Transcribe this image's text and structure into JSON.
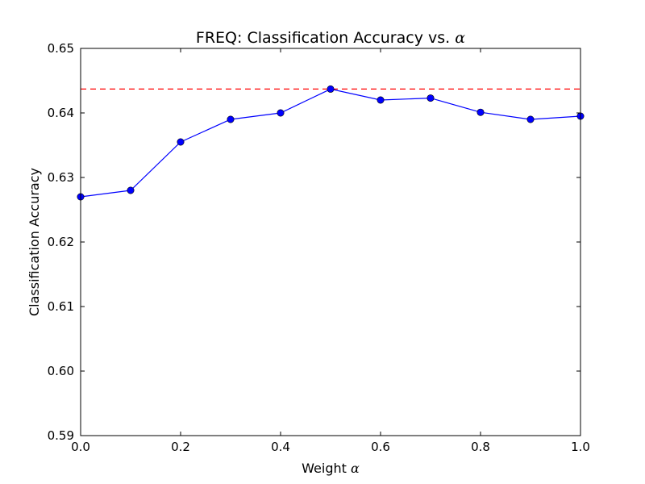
{
  "chart_data": {
    "type": "line",
    "title": "FREQ: Classification Accuracy vs.",
    "title_symbol": "α",
    "xlabel": "Weight",
    "xlabel_symbol": "α",
    "ylabel": "Classification Accuracy",
    "xlim": [
      0.0,
      1.0
    ],
    "ylim": [
      0.59,
      0.65
    ],
    "xticks": [
      "0.0",
      "0.2",
      "0.4",
      "0.6",
      "0.8",
      "1.0"
    ],
    "yticks": [
      "0.59",
      "0.60",
      "0.61",
      "0.62",
      "0.63",
      "0.64",
      "0.65"
    ],
    "grid": false,
    "series": [
      {
        "style": "solid-line-with-circle-markers",
        "color": "#0000ff",
        "x": [
          0.0,
          0.1,
          0.2,
          0.3,
          0.4,
          0.5,
          0.6,
          0.7,
          0.8,
          0.9,
          1.0
        ],
        "y": [
          0.627,
          0.628,
          0.6355,
          0.639,
          0.64,
          0.6437,
          0.642,
          0.6423,
          0.6401,
          0.639,
          0.6395
        ]
      }
    ],
    "reference_line": {
      "style": "dashed",
      "color": "#ff0000",
      "y": 0.6437
    }
  }
}
